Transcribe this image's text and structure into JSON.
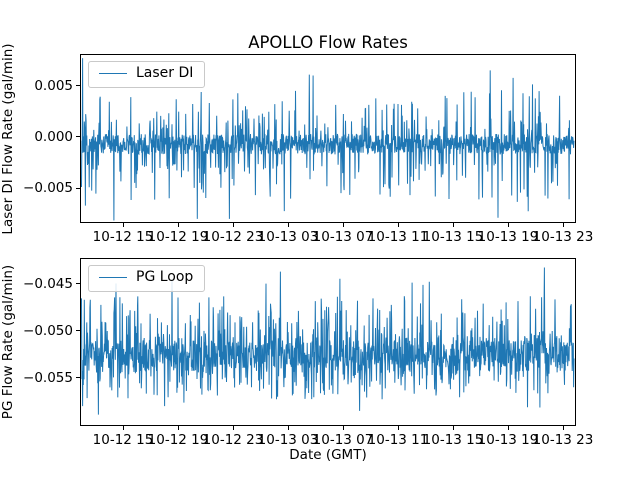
{
  "figure": {
    "title": "APOLLO Flow Rates",
    "xlabel": "Date (GMT)",
    "background": "#ffffff",
    "line_color": "#1f77b4",
    "text_color": "#000000"
  },
  "chart_data": [
    {
      "type": "line",
      "title": "APOLLO Flow Rates",
      "ylabel": "Laser DI Flow Rate (gal/min)",
      "legend": {
        "label": "Laser DI",
        "position": "upper left"
      },
      "grid": false,
      "x_tick_labels": [
        "10-12 15",
        "10-12 19",
        "10-12 23",
        "10-13 03",
        "10-13 07",
        "10-13 11",
        "10-13 15",
        "10-13 19",
        "10-13 23"
      ],
      "y_tick_labels": [
        "0.005",
        "0.000",
        "−0.005"
      ],
      "y_tick_values": [
        0.005,
        0.0,
        -0.005
      ],
      "ylim": [
        -0.0083,
        0.008
      ],
      "series": [
        {
          "name": "Laser DI",
          "color": "#1f77b4",
          "n_points": 1400,
          "baseline": -0.0007,
          "band_width": 0.002,
          "spike_up_range": [
            0.0006,
            0.0046
          ],
          "spike_down_range": [
            -0.0026,
            -0.0062
          ],
          "extreme_up_range": [
            0.005,
            0.0066
          ],
          "extreme_down_range": [
            -0.0063,
            -0.0082
          ],
          "p_spike_up": 0.1,
          "p_spike_down": 0.1,
          "p_extreme_up": 0.004,
          "p_extreme_down": 0.005,
          "notable_extremes": [
            {
              "x_frac": 0.002,
              "value": 0.0077
            },
            {
              "x_frac": 0.47,
              "value": 0.006
            },
            {
              "x_frac": 0.83,
              "value": 0.0065
            },
            {
              "x_frac": 0.235,
              "value": -0.008
            },
            {
              "x_frac": 0.3,
              "value": -0.008
            },
            {
              "x_frac": 0.008,
              "value": -0.0067
            }
          ]
        }
      ]
    },
    {
      "type": "line",
      "xlabel": "Date (GMT)",
      "ylabel": "PG Flow Rate (gal/min)",
      "legend": {
        "label": "PG Loop",
        "position": "upper left"
      },
      "grid": false,
      "x_tick_labels": [
        "10-12 15",
        "10-12 19",
        "10-12 23",
        "10-13 03",
        "10-13 07",
        "10-13 11",
        "10-13 15",
        "10-13 19",
        "10-13 23"
      ],
      "y_tick_labels": [
        "−0.045",
        "−0.050",
        "−0.055"
      ],
      "y_tick_values": [
        -0.045,
        -0.05,
        -0.055
      ],
      "ylim": [
        -0.06,
        -0.0424
      ],
      "series": [
        {
          "name": "PG Loop",
          "color": "#1f77b4",
          "n_points": 1400,
          "baseline": -0.0525,
          "band_width": 0.003,
          "spike_up_range": [
            -0.0508,
            -0.0463
          ],
          "spike_down_range": [
            -0.0542,
            -0.0573
          ],
          "extreme_up_range": [
            -0.0452,
            -0.0437
          ],
          "extreme_down_range": [
            -0.0576,
            -0.059
          ],
          "p_spike_up": 0.16,
          "p_spike_down": 0.16,
          "p_extreme_up": 0.004,
          "p_extreme_down": 0.004,
          "notable_extremes": [
            {
              "x_frac": 0.07,
              "value": -0.045
            },
            {
              "x_frac": 0.525,
              "value": -0.0445
            },
            {
              "x_frac": 0.94,
              "value": -0.0433
            },
            {
              "x_frac": 0.034,
              "value": -0.0589
            },
            {
              "x_frac": 0.565,
              "value": -0.0585
            },
            {
              "x_frac": 0.002,
              "value": -0.058
            }
          ]
        }
      ]
    }
  ]
}
